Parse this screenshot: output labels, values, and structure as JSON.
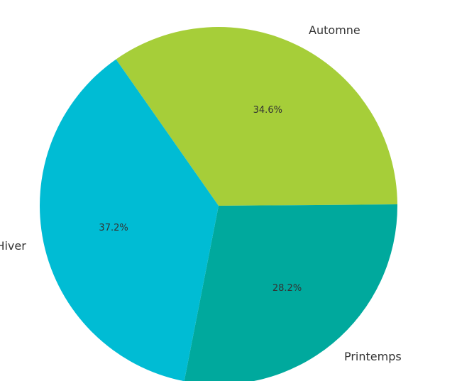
{
  "chart_data": {
    "type": "pie",
    "categories": [
      "Automne",
      "Printemps",
      "Hiver"
    ],
    "values": [
      34.6,
      28.2,
      37.2
    ],
    "value_labels": [
      "34.6%",
      "28.2%",
      "37.2%"
    ],
    "colors": [
      "#a6ce39",
      "#00a99d",
      "#00bcd4"
    ],
    "start_angle_deg": 125,
    "direction": "clockwise",
    "legend": "none"
  }
}
